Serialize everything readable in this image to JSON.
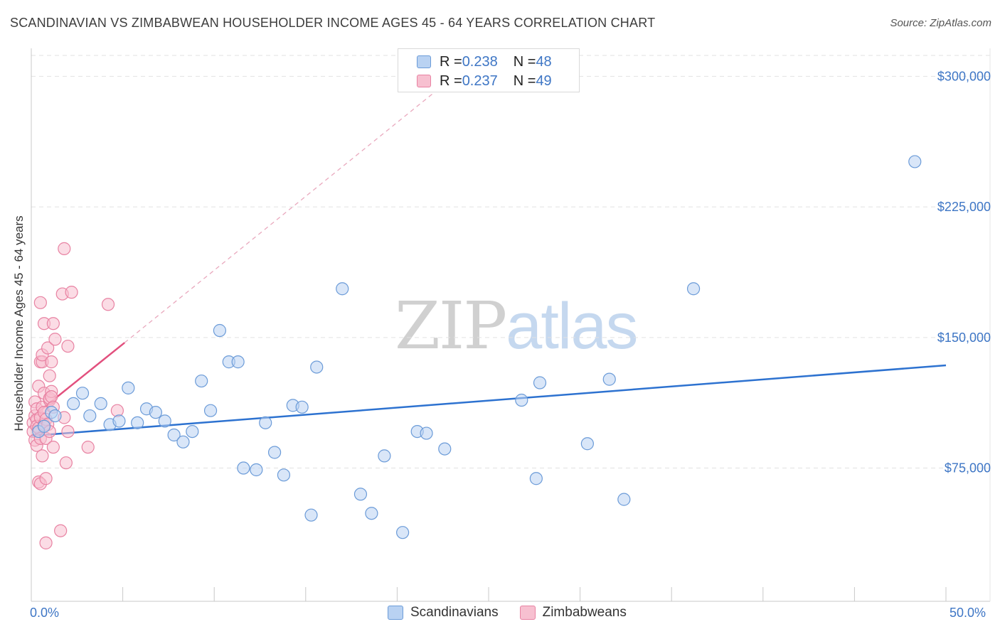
{
  "header": {
    "title": "SCANDINAVIAN VS ZIMBABWEAN HOUSEHOLDER INCOME AGES 45 - 64 YEARS CORRELATION CHART",
    "source": "Source: ZipAtlas.com"
  },
  "legend_top": {
    "rows": [
      {
        "r_label": "R = ",
        "r_value": "0.238",
        "n_label": "N = ",
        "n_value": "48"
      },
      {
        "r_label": "R = ",
        "r_value": "0.237",
        "n_label": "N = ",
        "n_value": "49"
      }
    ]
  },
  "legend_bottom": {
    "items": [
      "Scandinavians",
      "Zimbabweans"
    ]
  },
  "watermark": {
    "zip": "ZIP",
    "atlas": "atlas"
  },
  "colors": {
    "blue_fill": "#b9d2f2",
    "blue_stroke": "#6b9bd8",
    "blue_line": "#2d72d0",
    "pink_fill": "#f7c0d0",
    "pink_stroke": "#e882a2",
    "pink_line": "#e2507e",
    "axis_text": "#3e76c5",
    "grid": "#e2e2e2"
  },
  "chart_data": {
    "type": "scatter",
    "title": "SCANDINAVIAN VS ZIMBABWEAN HOUSEHOLDER INCOME AGES 45 - 64 YEARS CORRELATION CHART",
    "xlabel": "",
    "ylabel": "Householder Income Ages 45 - 64 years",
    "xlim": [
      0,
      50
    ],
    "ylim": [
      5000,
      312000
    ],
    "x_tick_labels": [
      "0.0%",
      "50.0%"
    ],
    "y_ticks": [
      75000,
      150000,
      225000,
      300000
    ],
    "y_tick_labels": [
      "$75,000",
      "$150,000",
      "$225,000",
      "$300,000"
    ],
    "grid": true,
    "legend": "top-center",
    "series": [
      {
        "name": "Scandinavians",
        "r": 0.238,
        "n": 48,
        "trend": {
          "x0": 0,
          "y0": 93500,
          "x1": 50,
          "y1": 134000
        },
        "points": [
          [
            0.4,
            96000
          ],
          [
            1.1,
            107000
          ],
          [
            1.3,
            105000
          ],
          [
            2.3,
            112000
          ],
          [
            2.8,
            118000
          ],
          [
            3.2,
            105000
          ],
          [
            3.8,
            112000
          ],
          [
            4.3,
            100000
          ],
          [
            4.8,
            102000
          ],
          [
            5.3,
            121000
          ],
          [
            5.8,
            101000
          ],
          [
            6.3,
            109000
          ],
          [
            6.8,
            107000
          ],
          [
            7.3,
            102000
          ],
          [
            7.8,
            94000
          ],
          [
            8.3,
            90000
          ],
          [
            8.8,
            96000
          ],
          [
            9.3,
            125000
          ],
          [
            9.8,
            108000
          ],
          [
            10.3,
            154000
          ],
          [
            10.8,
            136000
          ],
          [
            11.3,
            136000
          ],
          [
            11.6,
            75000
          ],
          [
            12.3,
            74000
          ],
          [
            12.8,
            101000
          ],
          [
            13.3,
            84000
          ],
          [
            13.8,
            71000
          ],
          [
            14.3,
            111000
          ],
          [
            14.8,
            110000
          ],
          [
            15.3,
            48000
          ],
          [
            15.6,
            133000
          ],
          [
            17.0,
            178000
          ],
          [
            18.0,
            60000
          ],
          [
            18.6,
            49000
          ],
          [
            19.3,
            82000
          ],
          [
            20.3,
            38000
          ],
          [
            21.1,
            96000
          ],
          [
            21.6,
            95000
          ],
          [
            22.6,
            86000
          ],
          [
            26.8,
            114000
          ],
          [
            27.6,
            69000
          ],
          [
            27.8,
            124000
          ],
          [
            30.4,
            89000
          ],
          [
            31.6,
            126000
          ],
          [
            32.4,
            57000
          ],
          [
            36.2,
            178000
          ],
          [
            48.3,
            251000
          ],
          [
            0.7,
            99000
          ]
        ]
      },
      {
        "name": "Zimbabweans",
        "r": 0.237,
        "n": 49,
        "trend": {
          "x0": 0,
          "y0": 104000,
          "x1": 5.1,
          "y1": 147000
        },
        "trend_extension": {
          "x0": 5.1,
          "y0": 147000,
          "x1": 23.0,
          "y1": 299000
        },
        "points": [
          [
            0.1,
            101000
          ],
          [
            0.1,
            96000
          ],
          [
            0.2,
            105000
          ],
          [
            0.2,
            113000
          ],
          [
            0.2,
            91000
          ],
          [
            0.3,
            103000
          ],
          [
            0.3,
            109000
          ],
          [
            0.3,
            99000
          ],
          [
            0.3,
            88000
          ],
          [
            0.4,
            122000
          ],
          [
            0.4,
            98000
          ],
          [
            0.4,
            67000
          ],
          [
            0.5,
            66000
          ],
          [
            0.5,
            170000
          ],
          [
            0.5,
            136000
          ],
          [
            0.5,
            104000
          ],
          [
            0.5,
            92000
          ],
          [
            0.6,
            136000
          ],
          [
            0.6,
            140000
          ],
          [
            0.6,
            82000
          ],
          [
            0.6,
            110000
          ],
          [
            0.7,
            100000
          ],
          [
            0.7,
            107000
          ],
          [
            0.7,
            158000
          ],
          [
            0.7,
            118000
          ],
          [
            0.8,
            69000
          ],
          [
            0.8,
            103000
          ],
          [
            0.8,
            92000
          ],
          [
            0.8,
            32000
          ],
          [
            0.9,
            144000
          ],
          [
            0.9,
            100000
          ],
          [
            1.0,
            114000
          ],
          [
            1.0,
            115000
          ],
          [
            1.0,
            128000
          ],
          [
            1.0,
            96000
          ],
          [
            1.1,
            136000
          ],
          [
            1.1,
            119000
          ],
          [
            1.1,
            116000
          ],
          [
            1.2,
            87000
          ],
          [
            1.2,
            110000
          ],
          [
            1.2,
            158000
          ],
          [
            1.3,
            149000
          ],
          [
            1.6,
            39000
          ],
          [
            1.7,
            175000
          ],
          [
            1.8,
            104000
          ],
          [
            1.8,
            201000
          ],
          [
            1.9,
            78000
          ],
          [
            2.0,
            145000
          ],
          [
            2.0,
            96000
          ]
        ]
      }
    ],
    "extra_points": [
      [
        2.2,
        176000
      ],
      [
        3.1,
        87000
      ],
      [
        4.2,
        169000
      ],
      [
        4.7,
        108000
      ]
    ]
  }
}
